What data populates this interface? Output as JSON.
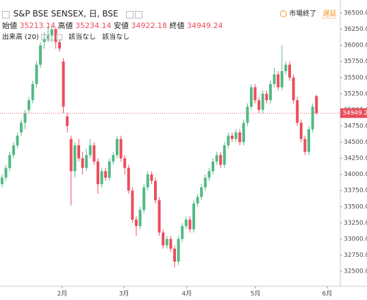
{
  "chart_data": {
    "type": "candlestick",
    "title": "S&P BSE SENSEX, 日, BSE",
    "status": "市場終了",
    "delay": "遅延",
    "ohlc_labels": [
      "始値",
      "高値",
      "安値",
      "終値"
    ],
    "volume_label": "出来高 (20)",
    "volume_values": [
      "該当なし",
      "該当なし"
    ],
    "up_color": "#53b987",
    "down_color": "#eb4d5c",
    "open": [
      33850,
      33950,
      34100,
      34300,
      34450,
      34650,
      34800,
      35000,
      35150,
      35400,
      35700,
      36050,
      36100,
      36150,
      36250,
      36050,
      35750,
      34900,
      34550,
      34050,
      34450,
      34250,
      34100,
      34300,
      34450,
      34200,
      33850,
      34050,
      33950,
      34200,
      34300,
      34550,
      34250,
      34100,
      33750,
      33300,
      33200,
      33450,
      33800,
      34000,
      33900,
      33600,
      33100,
      32900,
      33000,
      32850,
      32650,
      33000,
      33200,
      33300,
      33150,
      33550,
      33650,
      33800,
      33950,
      34050,
      34200,
      34300,
      34150,
      34450,
      34600,
      34550,
      34650,
      34500,
      34800,
      35050,
      35350,
      35150,
      35000,
      35250,
      35150,
      35400,
      35550,
      35350,
      35600,
      35700,
      35500,
      35150,
      34800,
      34550,
      34350,
      34700,
      35213.14
    ],
    "high": [
      34000,
      34150,
      34350,
      34500,
      34650,
      34850,
      35000,
      35200,
      35450,
      35750,
      36050,
      36200,
      36300,
      36300,
      36280,
      36100,
      35800,
      34950,
      34600,
      34500,
      34550,
      34350,
      34400,
      34550,
      34500,
      34250,
      34100,
      34100,
      34250,
      34350,
      34600,
      34600,
      34300,
      34150,
      33800,
      33350,
      33500,
      33850,
      34050,
      34050,
      33950,
      33650,
      33150,
      33050,
      33050,
      32900,
      33050,
      33250,
      33350,
      33350,
      33600,
      33700,
      33850,
      34000,
      34100,
      34250,
      34350,
      34350,
      34500,
      34650,
      34650,
      34700,
      34700,
      34850,
      35100,
      35400,
      35400,
      35200,
      35300,
      35300,
      35450,
      35650,
      35600,
      36000,
      35750,
      35750,
      35550,
      35200,
      34850,
      34600,
      34750,
      35100,
      35234.14
    ],
    "low": [
      33800,
      33900,
      34050,
      34250,
      34400,
      34600,
      34700,
      34950,
      35100,
      35350,
      35650,
      35950,
      36050,
      36050,
      35950,
      35900,
      34950,
      34650,
      33520,
      33950,
      34200,
      34000,
      34050,
      34250,
      34150,
      33700,
      33800,
      33900,
      33900,
      34150,
      34250,
      34200,
      34000,
      33700,
      33250,
      33050,
      33150,
      33400,
      33750,
      33850,
      33550,
      33050,
      32850,
      32850,
      32800,
      32560,
      32600,
      32950,
      33150,
      33100,
      33100,
      33500,
      33600,
      33750,
      33900,
      34000,
      34150,
      34100,
      34100,
      34400,
      34500,
      34500,
      34450,
      34450,
      34750,
      35000,
      35100,
      34950,
      34950,
      35100,
      35100,
      35350,
      35300,
      35300,
      35550,
      35450,
      35100,
      34750,
      34500,
      34300,
      34300,
      34650,
      34922.18
    ],
    "close": [
      33950,
      34100,
      34300,
      34450,
      34600,
      34800,
      34950,
      35150,
      35400,
      35700,
      36000,
      36100,
      36150,
      36250,
      36050,
      35950,
      35050,
      34750,
      34050,
      34450,
      34250,
      34100,
      34300,
      34450,
      34200,
      33850,
      34050,
      33950,
      34200,
      34300,
      34550,
      34250,
      34100,
      33750,
      33300,
      33200,
      33450,
      33800,
      34000,
      33900,
      33600,
      33100,
      32900,
      33000,
      32850,
      32650,
      33000,
      33200,
      33300,
      33150,
      33550,
      33650,
      33800,
      33950,
      34050,
      34200,
      34300,
      34150,
      34450,
      34600,
      34550,
      34650,
      34500,
      34800,
      35050,
      35350,
      35150,
      35000,
      35250,
      35150,
      35400,
      35550,
      35350,
      35600,
      35700,
      35500,
      35150,
      34800,
      34550,
      34350,
      34700,
      35050,
      34949.24
    ],
    "ylim": [
      32267,
      36702
    ],
    "yticks": [
      {
        "value": 32500,
        "label": "32500.00"
      },
      {
        "value": 32750,
        "label": "32750.00"
      },
      {
        "value": 33000,
        "label": "33000.00"
      },
      {
        "value": 33250,
        "label": "33250.00"
      },
      {
        "value": 33500,
        "label": "33500.00"
      },
      {
        "value": 33750,
        "label": "33750.00"
      },
      {
        "value": 34000,
        "label": "34000.00"
      },
      {
        "value": 34250,
        "label": "34250.00"
      },
      {
        "value": 34500,
        "label": "34500.00"
      },
      {
        "value": 34750,
        "label": "34750.00"
      },
      {
        "value": 35000,
        "label": "35000.00"
      },
      {
        "value": 35250,
        "label": "35250.00"
      },
      {
        "value": 35500,
        "label": "35500.00"
      },
      {
        "value": 35750,
        "label": "35750.00"
      },
      {
        "value": 36000,
        "label": "36000.00"
      },
      {
        "value": 36250,
        "label": "36250.00"
      },
      {
        "value": 36500,
        "label": "36500.00"
      }
    ],
    "xticks": [
      {
        "value": 15.7,
        "label": "2月"
      },
      {
        "value": 31.8,
        "label": "3月"
      },
      {
        "value": 48.2,
        "label": "4月"
      },
      {
        "value": 66.1,
        "label": "5月"
      },
      {
        "value": 84.8,
        "label": "6月"
      }
    ],
    "grid": false
  }
}
